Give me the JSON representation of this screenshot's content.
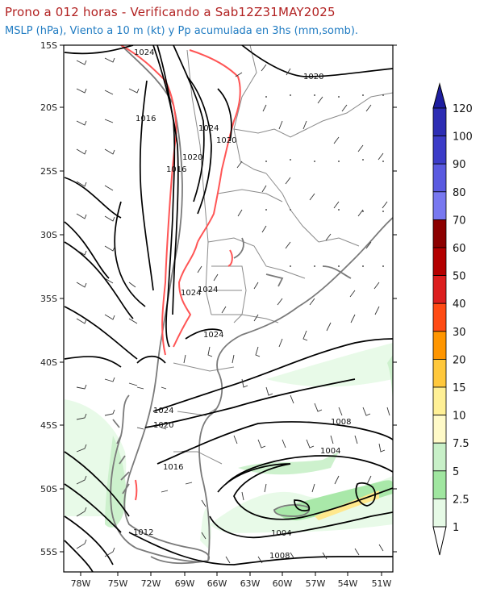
{
  "header": {
    "title": "Prono a 012 horas - Verificando a Sab12Z31MAY2025",
    "subtitle": "MSLP (hPa), Viento a 10 m (kt) y Pp acumulada en 3hs (mm,somb)."
  },
  "map": {
    "lat_labels": [
      "15S",
      "20S",
      "25S",
      "30S",
      "35S",
      "40S",
      "45S",
      "50S",
      "55S"
    ],
    "lon_labels": [
      "78W",
      "75W",
      "72W",
      "69W",
      "66W",
      "63W",
      "60W",
      "57W",
      "54W",
      "51W"
    ],
    "isobar_labels": [
      "1024",
      "1016",
      "1024",
      "1020",
      "1020",
      "1020",
      "1016",
      "1024",
      "1024",
      "1024",
      "1024",
      "1020",
      "1016",
      "1012",
      "1008",
      "1004",
      "1004",
      "1008"
    ],
    "colors": {
      "isobar": "#000000",
      "terrain_contour": "#ff5555",
      "coast": "#808080"
    }
  },
  "colorbar": {
    "labels": [
      "120",
      "100",
      "90",
      "80",
      "70",
      "60",
      "50",
      "40",
      "30",
      "20",
      "15",
      "10",
      "7.5",
      "5",
      "2.5",
      "1"
    ],
    "colors": [
      "#1e1ea0",
      "#2d2db4",
      "#3c3cc8",
      "#5a5ae0",
      "#7878f0",
      "#8c0000",
      "#b40000",
      "#dc1e1e",
      "#ff4b14",
      "#ff9600",
      "#ffc83c",
      "#fff096",
      "#fffac8",
      "#c8f0c8",
      "#a0e6a0",
      "#e6fae6"
    ]
  }
}
